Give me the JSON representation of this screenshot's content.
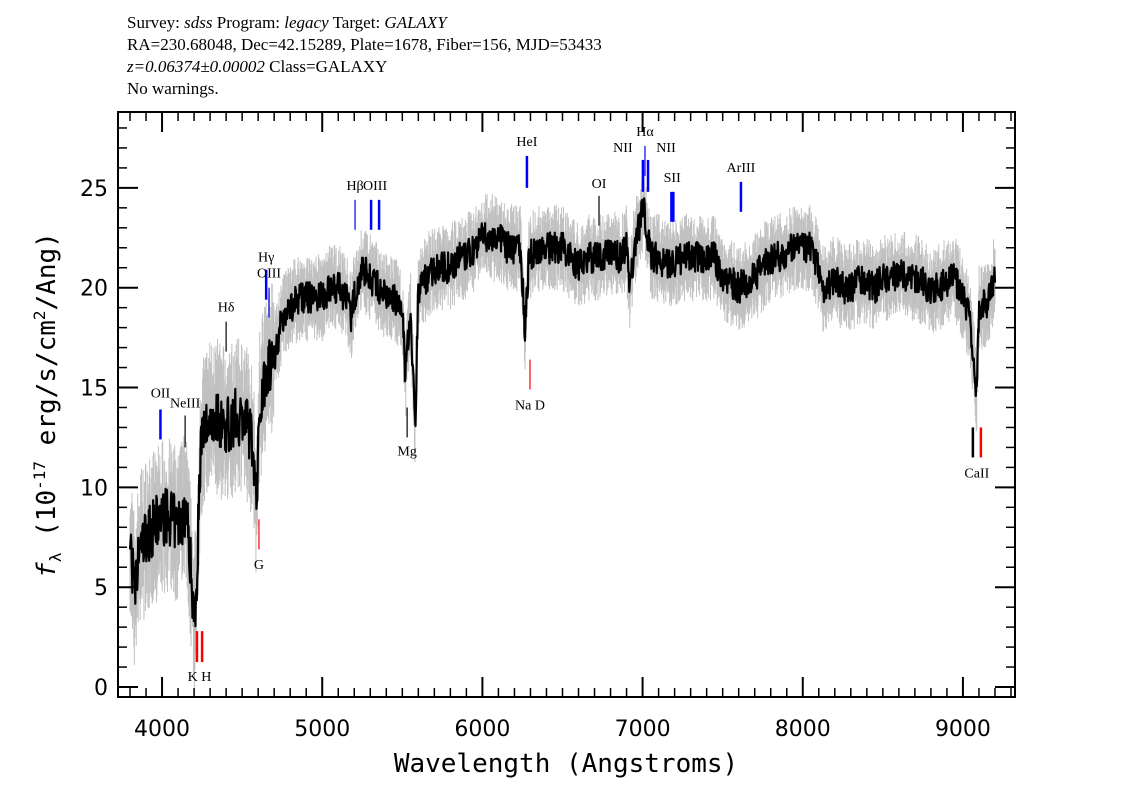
{
  "header": {
    "line1": {
      "survey_label": "Survey: ",
      "survey": "sdss",
      "program_label": " Program: ",
      "program": "legacy",
      "target_label": " Target: ",
      "target": "GALAXY"
    },
    "line2": "RA=230.68048, Dec=42.15289, Plate=1678, Fiber=156, MJD=53433",
    "line3": {
      "z": "z=0.06374±0.00002",
      "class": " Class=GALAXY"
    },
    "line4": "No warnings."
  },
  "chart_data": {
    "type": "line",
    "xlabel": "Wavelength (Angstroms)",
    "ylabel": {
      "f": "f",
      "sub": "λ",
      "pre": " (10",
      "sup1": "-17",
      "mid": " erg/s/cm",
      "sup2": "2",
      "post": "/Ang)"
    },
    "xlim": [
      3725,
      9325
    ],
    "ylim": [
      -0.5,
      28.8
    ],
    "xticks": [
      4000,
      5000,
      6000,
      7000,
      8000,
      9000
    ],
    "xtick_labels": [
      "4000",
      "5000",
      "6000",
      "7000",
      "8000",
      "9000"
    ],
    "yticks": [
      0,
      5,
      10,
      15,
      20,
      25
    ],
    "ytick_labels": [
      "0",
      "5",
      "10",
      "15",
      "20",
      "25"
    ],
    "grid": false,
    "colors": {
      "flux": "#000000",
      "error_band": "#c0c0c0",
      "emission": "#0000ff",
      "absorption": "#ff0000",
      "sky": "#000000"
    },
    "series": [
      {
        "x": [
          3800,
          3830,
          3860,
          3900,
          3950,
          4000,
          4050,
          4100,
          4150,
          4180,
          4200,
          4215,
          4240,
          4270,
          4300,
          4350,
          4400,
          4450,
          4500,
          4540,
          4570,
          4590,
          4610,
          4650,
          4700,
          4750,
          4800,
          4850,
          4900,
          4950,
          5000,
          5050,
          5100,
          5150,
          5180,
          5200,
          5250,
          5300,
          5350,
          5400,
          5450,
          5500,
          5520,
          5550,
          5580,
          5600,
          5650,
          5700,
          5750,
          5800,
          5850,
          5900,
          5950,
          6000,
          6050,
          6100,
          6150,
          6200,
          6240,
          6265,
          6290,
          6350,
          6400,
          6450,
          6500,
          6550,
          6600,
          6650,
          6700,
          6750,
          6800,
          6850,
          6900,
          6920,
          6950,
          6990,
          7010,
          7050,
          7100,
          7150,
          7200,
          7250,
          7300,
          7350,
          7400,
          7450,
          7500,
          7550,
          7600,
          7650,
          7700,
          7750,
          7800,
          7850,
          7900,
          7950,
          8000,
          8050,
          8100,
          8130,
          8200,
          8250,
          8300,
          8350,
          8400,
          8450,
          8500,
          8550,
          8600,
          8650,
          8700,
          8750,
          8800,
          8850,
          8900,
          8950,
          9000,
          9040,
          9070,
          9085,
          9100,
          9150,
          9200
        ],
        "y": [
          7.5,
          4.5,
          7,
          7.5,
          8,
          8.5,
          8.5,
          8,
          9,
          6,
          3.5,
          5,
          12,
          13,
          13.5,
          13.5,
          13,
          13.5,
          13.5,
          13,
          12,
          9,
          14,
          16,
          16.5,
          18.5,
          19,
          19.5,
          19.5,
          19.5,
          19.5,
          20,
          20,
          19.5,
          18.5,
          19.5,
          21,
          20.5,
          20,
          19.5,
          19.5,
          18.5,
          15.5,
          19,
          13,
          20,
          20.5,
          21,
          21,
          21,
          21.5,
          21.5,
          22,
          22.5,
          22.5,
          22.5,
          22,
          22,
          22,
          17.8,
          21.5,
          22,
          22,
          22,
          22,
          21.5,
          21,
          21.5,
          21.5,
          21.5,
          21.8,
          21.5,
          22,
          19.8,
          22.2,
          23.5,
          24,
          21.5,
          21.5,
          21.2,
          21.3,
          21.5,
          21.5,
          21.5,
          21.5,
          21.5,
          20.5,
          20.3,
          20,
          20.3,
          20.5,
          21,
          21.5,
          21.5,
          21.8,
          22,
          22,
          22,
          21,
          19.8,
          20.5,
          20,
          20,
          20.3,
          20.3,
          20,
          20.5,
          20.5,
          20.8,
          20.5,
          20.5,
          20.3,
          19.8,
          20,
          20.3,
          20.5,
          19.5,
          18.5,
          16,
          14.5,
          19,
          19.2,
          20.5
        ]
      }
    ],
    "lines": [
      {
        "label": "OII",
        "wavelength": 3990,
        "y": [
          12.4,
          13.9
        ],
        "type": "emission",
        "label_y": 14.5,
        "thick": true
      },
      {
        "label": "NeIII",
        "wavelength": 4144,
        "y": [
          12.0,
          13.6
        ],
        "type": "sky",
        "label_y": 14.0,
        "thick": false
      },
      {
        "label": "Hδ",
        "wavelength": 4400,
        "y": [
          16.8,
          18.3
        ],
        "type": "sky",
        "label_y": 18.8,
        "thick": false
      },
      {
        "label": "Hγ",
        "wavelength": 4650,
        "y": [
          19.4,
          20.9
        ],
        "type": "emission",
        "label_y": 21.3,
        "thick": true
      },
      {
        "label": "OIII",
        "wavelength": 4668,
        "y": [
          18.5,
          20.0
        ],
        "type": "emission",
        "label_y": 20.5,
        "thick": false
      },
      {
        "label": "Hβ",
        "wavelength": 5205,
        "y": [
          22.9,
          24.4
        ],
        "type": "emission",
        "label_y": 24.9,
        "thick": false
      },
      {
        "label": "OIII",
        "wavelength": 5330,
        "y": [
          22.9,
          24.4
        ],
        "type": "emission",
        "label_y": 24.9,
        "thick": true,
        "marks": [
          5305,
          5355
        ]
      },
      {
        "label": "Mg",
        "wavelength": 5530,
        "y": [
          12.5,
          14.0
        ],
        "type": "sky",
        "label_y": 11.6,
        "thick": false
      },
      {
        "label": "HeI",
        "wavelength": 6278,
        "y": [
          25.0,
          26.6
        ],
        "type": "emission",
        "label_y": 27.1,
        "thick": true
      },
      {
        "label": "Na  D",
        "wavelength": 6297,
        "y": [
          14.9,
          16.4
        ],
        "type": "absorption",
        "label_y": 13.9,
        "thick": false
      },
      {
        "label": "OI",
        "wavelength": 6728,
        "y": [
          23.1,
          24.6
        ],
        "type": "sky",
        "label_y": 25.0,
        "thick": false
      },
      {
        "label": "NII",
        "wavelength": 7002,
        "y": [
          24.8,
          26.4
        ],
        "type": "emission",
        "label_y": 26.8,
        "thick": true,
        "label_dx": -20
      },
      {
        "label": "Hα",
        "wavelength": 7015,
        "y": [
          25.6,
          27.1
        ],
        "type": "emission",
        "label_y": 27.6,
        "thick": false
      },
      {
        "label": "NII",
        "wavelength": 7034,
        "y": [
          24.8,
          26.4
        ],
        "type": "emission",
        "label_y": 26.8,
        "thick": true,
        "label_dx": 18
      },
      {
        "label": "SII",
        "wavelength": 7185,
        "y": [
          23.3,
          24.8
        ],
        "type": "emission",
        "label_y": 25.3,
        "thick": true,
        "marks": [
          7180,
          7192
        ]
      },
      {
        "label": "ArIII",
        "wavelength": 7614,
        "y": [
          23.8,
          25.3
        ],
        "type": "emission",
        "label_y": 25.8,
        "thick": true
      },
      {
        "label": "CaII",
        "wavelength": 9087,
        "y": [
          11.5,
          13.0
        ],
        "type": "absorption",
        "label_y": 10.5,
        "thick": true,
        "marks": [
          9062,
          9112
        ],
        "mark_types": [
          "sky",
          "absorption"
        ]
      },
      {
        "label": "K H",
        "wavelength": 4234,
        "y": [
          1.25,
          2.8
        ],
        "type": "absorption",
        "label_y": 0.3,
        "thick": true,
        "marks": [
          4218,
          4250
        ]
      },
      {
        "label": "G",
        "wavelength": 4605,
        "y": [
          6.9,
          8.4
        ],
        "type": "absorption",
        "label_y": 5.9,
        "thick": false
      }
    ]
  }
}
